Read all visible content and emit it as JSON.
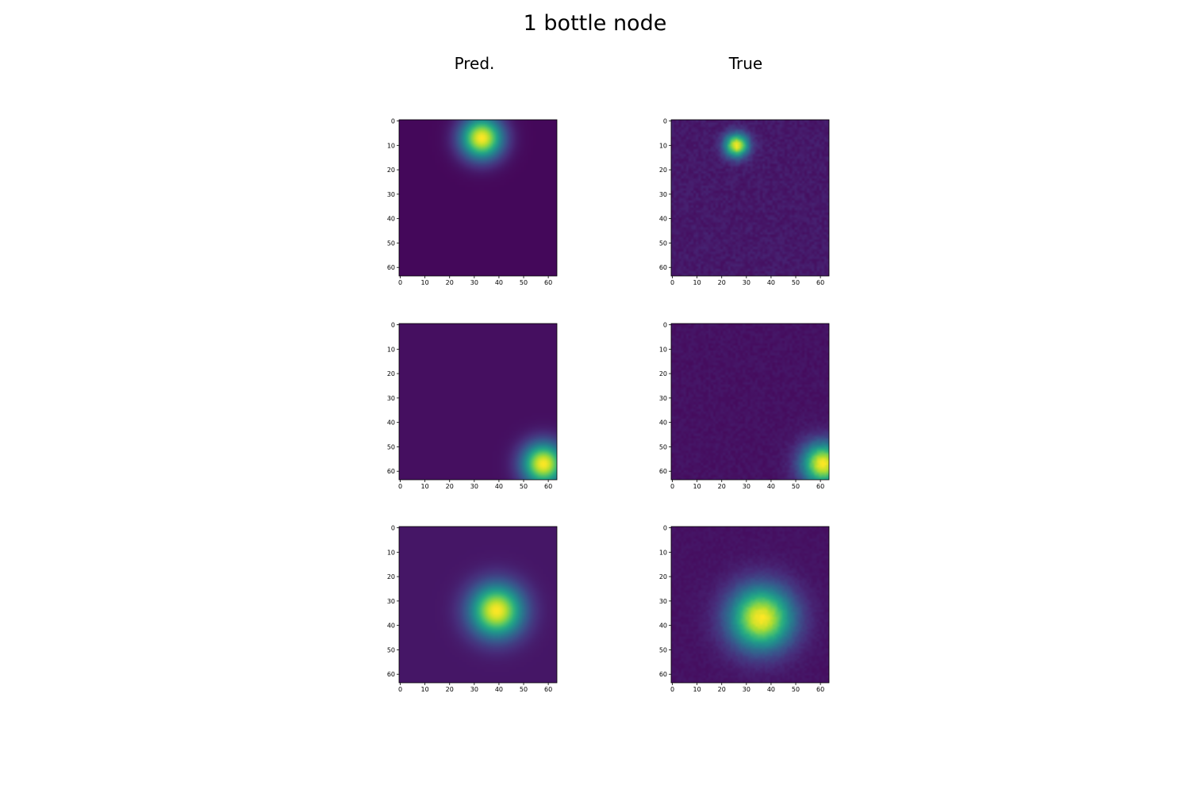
{
  "figure": {
    "title": "1 bottle node",
    "column_titles": [
      "Pred.",
      "True"
    ]
  },
  "chart_data": {
    "type": "heatmap",
    "title": "1 bottle node",
    "colormap": "viridis",
    "grid": false,
    "image_size": 64,
    "xlim": [
      0,
      63
    ],
    "ylim": [
      63,
      0
    ],
    "xticks": [
      0,
      10,
      20,
      30,
      40,
      50,
      60
    ],
    "yticks": [
      0,
      10,
      20,
      30,
      40,
      50,
      60
    ],
    "colors": {
      "low": "#440154",
      "mid": "#21918c",
      "high": "#fde725"
    },
    "panels": [
      {
        "row": 1,
        "column": "Pred.",
        "blob_center": [
          33,
          7
        ],
        "blob_radius": 8,
        "background_level": 0.02,
        "noise": 0.0
      },
      {
        "row": 1,
        "column": "True",
        "blob_center": [
          26,
          10
        ],
        "blob_radius": 4.5,
        "background_level": 0.07,
        "noise": 0.03
      },
      {
        "row": 2,
        "column": "Pred.",
        "blob_center": [
          58,
          57
        ],
        "blob_radius": 8,
        "background_level": 0.04,
        "noise": 0.0
      },
      {
        "row": 2,
        "column": "True",
        "blob_center": [
          61,
          57
        ],
        "blob_radius": 8,
        "background_level": 0.05,
        "noise": 0.02
      },
      {
        "row": 3,
        "column": "Pred.",
        "blob_center": [
          39,
          34
        ],
        "blob_radius": 10,
        "background_level": 0.06,
        "noise": 0.0
      },
      {
        "row": 3,
        "column": "True",
        "blob_center": [
          36,
          37
        ],
        "blob_radius": 12,
        "background_level": 0.05,
        "noise": 0.015
      }
    ]
  }
}
